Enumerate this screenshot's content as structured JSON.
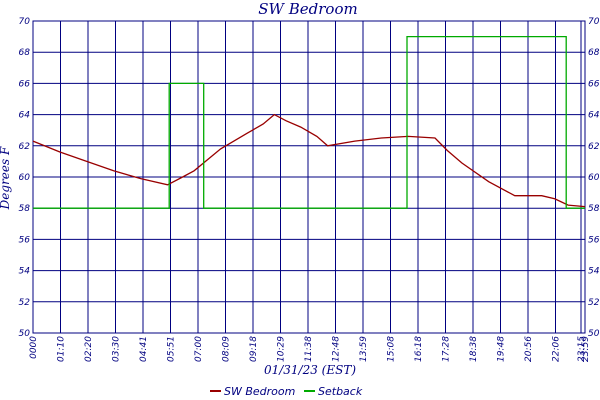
{
  "chart_data": {
    "type": "line",
    "title": "SW Bedroom",
    "xlabel": "01/31/23 (EST)",
    "ylabel": "Degrees F",
    "ylim": [
      50,
      70
    ],
    "yticks": [
      50,
      52,
      54,
      56,
      58,
      60,
      62,
      64,
      66,
      68,
      70
    ],
    "xlim": [
      "00:00",
      "23:59"
    ],
    "xtick_labels": [
      "0000",
      "01:10",
      "02:20",
      "03:30",
      "04:41",
      "05:51",
      "07:00",
      "08:09",
      "09:18",
      "10:29",
      "11:38",
      "12:48",
      "13:59",
      "15:08",
      "16:18",
      "17:28",
      "18:38",
      "19:48",
      "20:56",
      "22:06",
      "23:15",
      "23:59"
    ],
    "grid": true,
    "legend_position": "bottom",
    "series": [
      {
        "name": "SW Bedroom",
        "color": "#990000",
        "points": [
          [
            "00:00",
            62.3
          ],
          [
            "01:10",
            61.6
          ],
          [
            "02:20",
            61.0
          ],
          [
            "03:30",
            60.4
          ],
          [
            "04:41",
            59.9
          ],
          [
            "05:51",
            59.5
          ],
          [
            "06:30",
            60.0
          ],
          [
            "07:00",
            60.4
          ],
          [
            "08:09",
            61.8
          ],
          [
            "09:18",
            62.8
          ],
          [
            "10:00",
            63.4
          ],
          [
            "10:29",
            64.0
          ],
          [
            "11:00",
            63.6
          ],
          [
            "11:38",
            63.2
          ],
          [
            "12:20",
            62.6
          ],
          [
            "12:48",
            62.0
          ],
          [
            "13:59",
            62.3
          ],
          [
            "15:08",
            62.5
          ],
          [
            "16:18",
            62.6
          ],
          [
            "17:28",
            62.5
          ],
          [
            "18:00",
            61.7
          ],
          [
            "18:38",
            60.9
          ],
          [
            "19:48",
            59.7
          ],
          [
            "20:56",
            58.8
          ],
          [
            "22:06",
            58.8
          ],
          [
            "22:40",
            58.6
          ],
          [
            "23:15",
            58.2
          ],
          [
            "23:59",
            58.1
          ]
        ]
      },
      {
        "name": "Setback",
        "color": "#00aa00",
        "points": [
          [
            "00:00",
            58
          ],
          [
            "05:55",
            58
          ],
          [
            "05:55",
            66
          ],
          [
            "07:25",
            66
          ],
          [
            "07:25",
            58
          ],
          [
            "16:15",
            58
          ],
          [
            "16:15",
            69
          ],
          [
            "23:10",
            69
          ],
          [
            "23:10",
            58
          ],
          [
            "23:59",
            58
          ]
        ]
      }
    ]
  }
}
